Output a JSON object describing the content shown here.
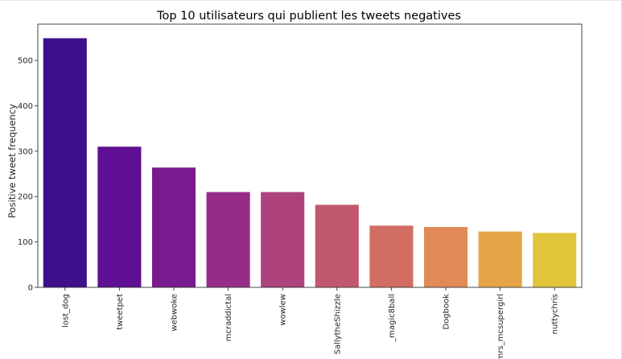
{
  "chart_data": {
    "type": "bar",
    "title": "Top 10 utilisateurs qui publient les tweets negatives",
    "xlabel": "",
    "ylabel": "Positive tweet frequency",
    "categories": [
      "lost_dog",
      "tweetpet",
      "webwoke",
      "mcraddictal",
      "wowlew",
      "SallytheShizzle",
      "_magic8ball",
      "Dogbook",
      "mrs_mcsupergirl",
      "nuttychris"
    ],
    "values": [
      549,
      310,
      264,
      210,
      210,
      182,
      136,
      133,
      123,
      120
    ],
    "colors": [
      "#3d0f8a",
      "#5f0f94",
      "#7a1a91",
      "#962c88",
      "#ad427c",
      "#c2586e",
      "#d26d63",
      "#e18a56",
      "#e6a446",
      "#e2c43a"
    ],
    "ylim": [
      0,
      580
    ],
    "yticks": [
      0,
      100,
      200,
      300,
      400,
      500
    ],
    "grid": false,
    "legend": "none"
  }
}
